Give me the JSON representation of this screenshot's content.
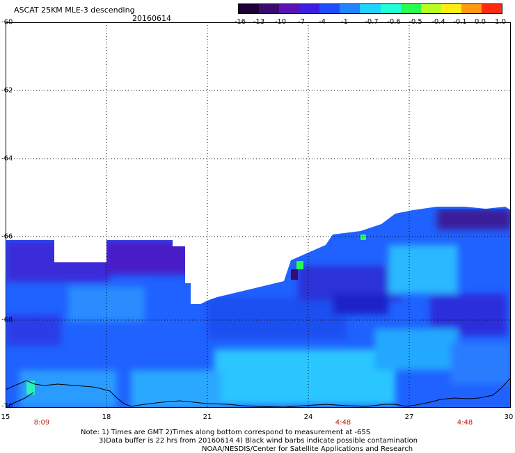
{
  "header": {
    "title": "ASCAT 25KM MLE-3 descending",
    "date": "20160614"
  },
  "colorbar": {
    "labels": [
      "-16",
      "-13",
      "-10",
      "-7",
      "-4",
      "-1",
      "-0.7",
      "-0.6",
      "-0.5",
      "-0.4",
      "-0.1",
      "0.0",
      "1.0"
    ],
    "colors": [
      "#1a0033",
      "#3a0a6e",
      "#5b12b3",
      "#3b1fe0",
      "#1f4cff",
      "#1f86ff",
      "#20d4ff",
      "#20ffd6",
      "#27ff4a",
      "#b7ff1f",
      "#ffee10",
      "#ff9910",
      "#ff2a10"
    ]
  },
  "map": {
    "lat_labels": [
      "-60",
      "-62",
      "-64",
      "-66",
      "-68",
      "-70"
    ],
    "lon_labels": [
      "15",
      "18",
      "21",
      "24",
      "27",
      "30"
    ],
    "time_labels": [
      "8:09",
      "4:48",
      "4:48"
    ],
    "gridline_style": "dotted",
    "data_color_scale": "MLE-3 (colorbar)"
  },
  "notes": {
    "line1": "Note: 1) Times are GMT 2)Times along bottom correspond to measurement at -65S",
    "line2": "3)Data buffer is 22 hrs from 20160614 4) Black wind barbs indicate possible contamination",
    "line3": "NOAA/NESDIS/Center for Satellite Applications and Research"
  }
}
